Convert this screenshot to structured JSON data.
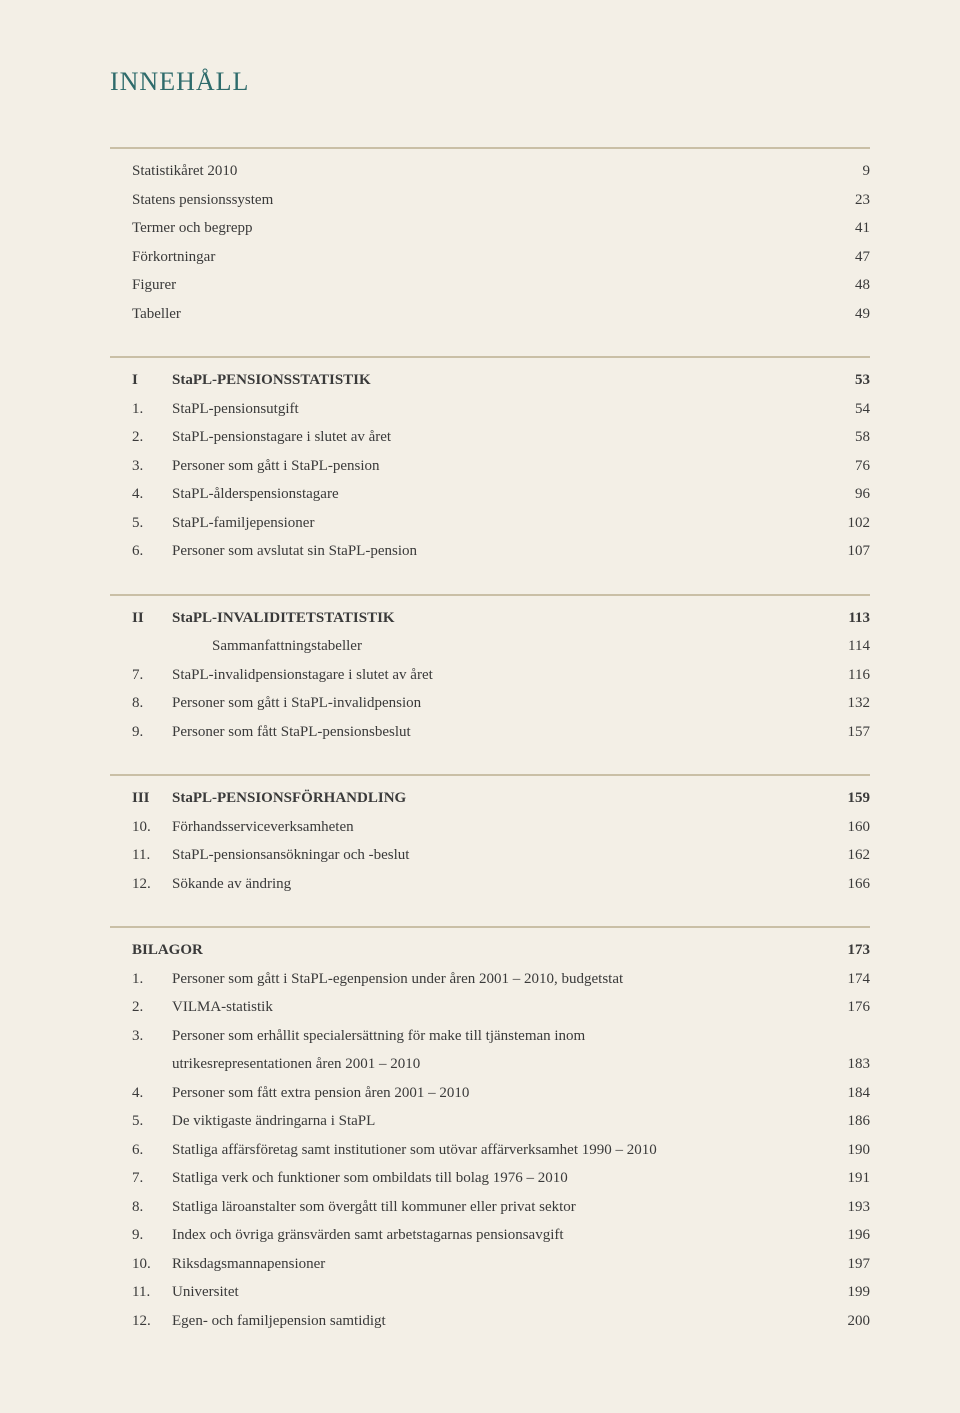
{
  "title": "INNEHÅLL",
  "sections": [
    {
      "type": "simple",
      "rows": [
        {
          "num": "",
          "label": "Statistikåret 2010",
          "page": "9"
        },
        {
          "num": "",
          "label": "Statens pensionssystem",
          "page": "23"
        },
        {
          "num": "",
          "label": "Termer och begrepp",
          "page": "41"
        },
        {
          "num": "",
          "label": "Förkortningar",
          "page": "47"
        },
        {
          "num": "",
          "label": "Figurer",
          "page": "48"
        },
        {
          "num": "",
          "label": "Tabeller",
          "page": "49"
        }
      ]
    },
    {
      "type": "numbered",
      "head": {
        "num": "I",
        "label": "StaPL-PENSIONSSTATISTIK",
        "page": "53"
      },
      "rows": [
        {
          "num": "1.",
          "label": "StaPL-pensionsutgift",
          "page": "54"
        },
        {
          "num": "2.",
          "label": "StaPL-pensionstagare i slutet av året",
          "page": "58"
        },
        {
          "num": "3.",
          "label": "Personer som gått i StaPL-pension",
          "page": "76"
        },
        {
          "num": "4.",
          "label": "StaPL-ålderspensionstagare",
          "page": "96"
        },
        {
          "num": "5.",
          "label": "StaPL-familjepensioner",
          "page": "102"
        },
        {
          "num": "6.",
          "label": "Personer som avslutat sin StaPL-pension",
          "page": "107"
        }
      ]
    },
    {
      "type": "numbered",
      "head": {
        "num": "II",
        "label": "StaPL-INVALIDITETSTATISTIK",
        "page": "113"
      },
      "subhead": {
        "label": "Sammanfattningstabeller",
        "page": "114"
      },
      "rows": [
        {
          "num": "7.",
          "label": "StaPL-invalidpensionstagare i slutet av året",
          "page": "116"
        },
        {
          "num": "8.",
          "label": "Personer som gått i StaPL-invalidpension",
          "page": "132"
        },
        {
          "num": "9.",
          "label": "Personer som fått StaPL-pensionsbeslut",
          "page": "157"
        }
      ]
    },
    {
      "type": "numbered",
      "head": {
        "num": "III",
        "label": "StaPL-PENSIONSFÖRHANDLING",
        "page": "159"
      },
      "rows": [
        {
          "num": "10.",
          "label": "Förhandsserviceverksamheten",
          "page": "160"
        },
        {
          "num": "11.",
          "label": "StaPL-pensionsansökningar och -beslut",
          "page": "162"
        },
        {
          "num": "12.",
          "label": "Sökande av ändring",
          "page": "166"
        }
      ]
    },
    {
      "type": "numbered",
      "head": {
        "num": "",
        "label": "BILAGOR",
        "page": "173",
        "nonum": true
      },
      "rows": [
        {
          "num": "1.",
          "label": "Personer som gått i StaPL-egenpension under åren 2001 – 2010, budgetstat",
          "page": "174"
        },
        {
          "num": "2.",
          "label": "VILMA-statistik",
          "page": "176"
        },
        {
          "num": "3.",
          "label": "Personer som erhållit specialersättning för make till tjänsteman inom",
          "page": ""
        },
        {
          "num": "",
          "label": "utrikesrepresentationen åren 2001 – 2010",
          "page": "183"
        },
        {
          "num": "4.",
          "label": "Personer som fått extra pension åren 2001 – 2010",
          "page": "184"
        },
        {
          "num": "5.",
          "label": "De viktigaste ändringarna i StaPL",
          "page": "186"
        },
        {
          "num": "6.",
          "label": "Statliga affärsföretag samt institutioner som utövar affärverksamhet 1990 – 2010",
          "page": "190"
        },
        {
          "num": "7.",
          "label": "Statliga verk och funktioner som ombildats till bolag 1976 – 2010",
          "page": "191"
        },
        {
          "num": "8.",
          "label": "Statliga läroanstalter som övergått till kommuner eller privat sektor",
          "page": "193"
        },
        {
          "num": "9.",
          "label": "Index och övriga gränsvärden samt arbetstagarnas pensionsavgift",
          "page": "196"
        },
        {
          "num": "10.",
          "label": "Riksdagsmannapensioner",
          "page": "197"
        },
        {
          "num": "11.",
          "label": "Universitet",
          "page": "199"
        },
        {
          "num": "12.",
          "label": "Egen- och familjepension samtidigt",
          "page": "200"
        }
      ]
    }
  ]
}
